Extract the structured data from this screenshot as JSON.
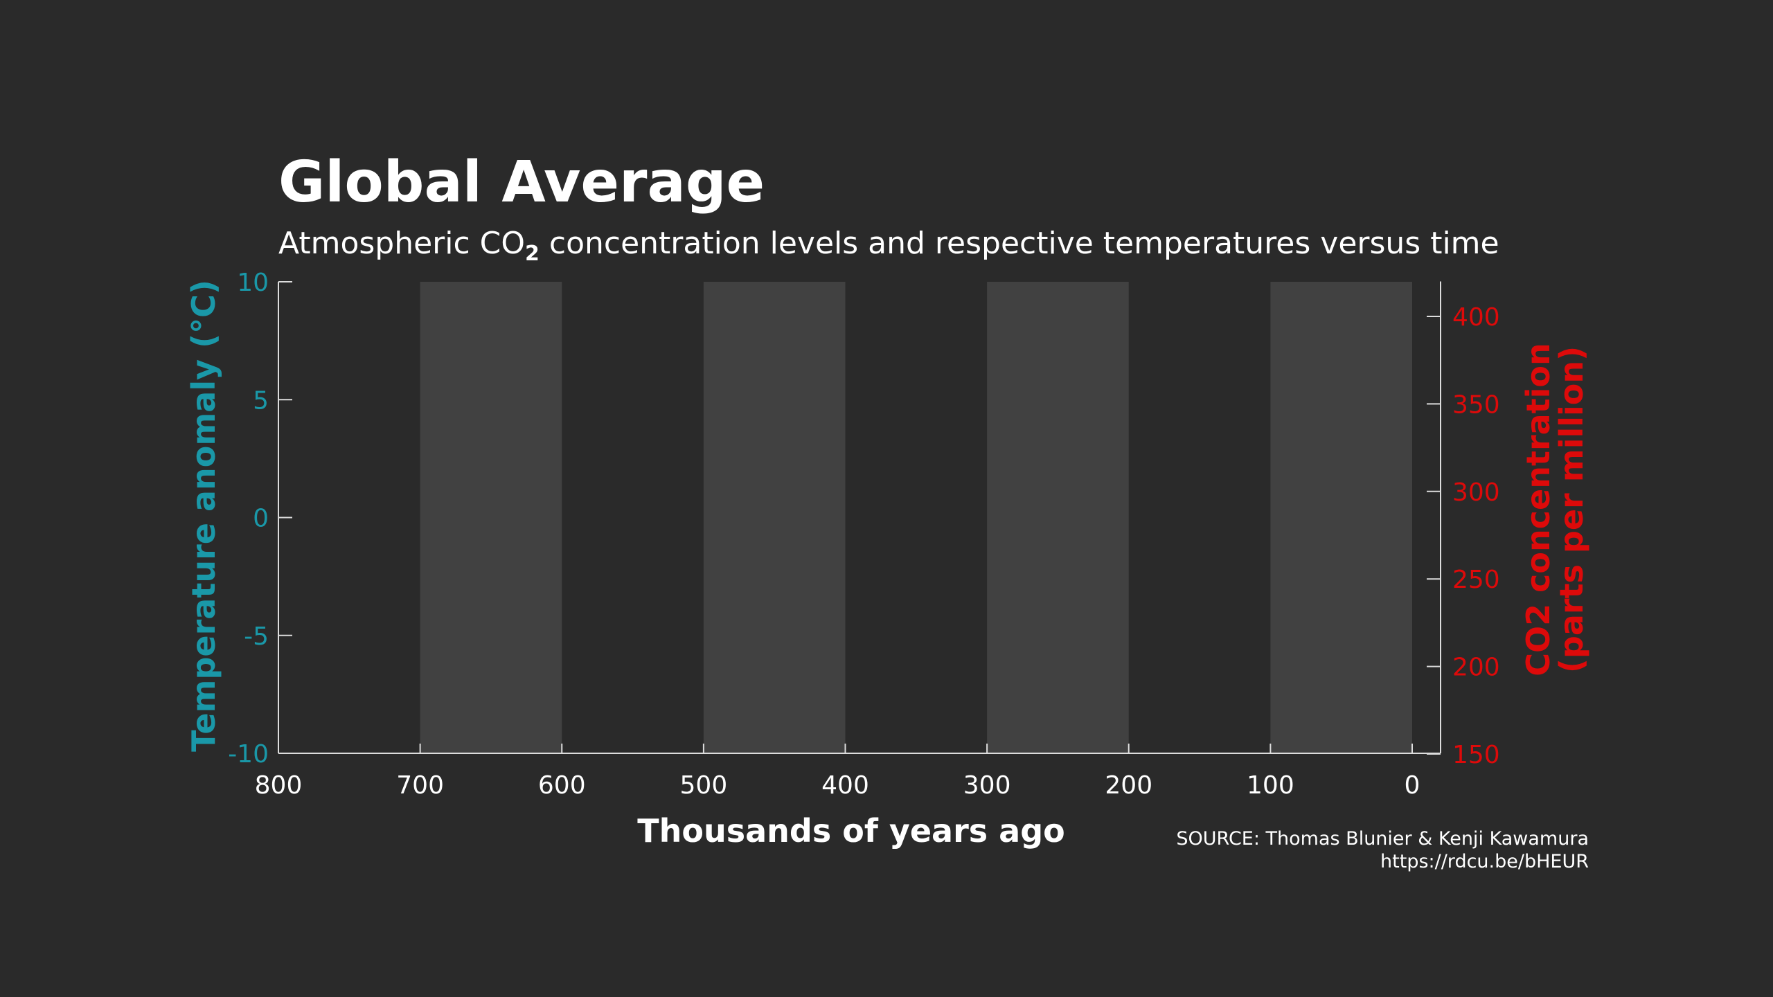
{
  "chart_data": {
    "type": "area",
    "title": "Global Average",
    "subtitle_parts": [
      "Atmospheric CO",
      "2",
      " concentration levels and respective temperatures versus time"
    ],
    "xlabel": "Thousands of years ago",
    "ylabel_left": "Temperature anomaly (°C)",
    "ylabel_right_lines": [
      "CO2 concentration",
      "(parts per million)"
    ],
    "x_range": [
      800,
      0
    ],
    "x_reversed": true,
    "x_ticks": [
      800,
      700,
      600,
      500,
      400,
      300,
      200,
      100,
      0
    ],
    "y_left_range": [
      -10,
      10
    ],
    "y_left_ticks": [
      10,
      5,
      0,
      -5,
      -10
    ],
    "y_right_range": [
      150,
      420
    ],
    "y_right_ticks": [
      400,
      350,
      300,
      250,
      200,
      150
    ],
    "shaded_bands": [
      [
        700,
        600
      ],
      [
        500,
        400
      ],
      [
        300,
        200
      ],
      [
        100,
        0
      ]
    ],
    "series": [],
    "grid": false,
    "colors": {
      "background": "#2a2a2a",
      "band": "#414141",
      "axis": "#dddddd",
      "left_axis": "#1a98a8",
      "right_axis": "#dd0a0a",
      "text": "#ffffff"
    }
  },
  "source": {
    "line1": "SOURCE: Thomas Blunier & Kenji Kawamura",
    "line2": "https://rdcu.be/bHEUR"
  }
}
